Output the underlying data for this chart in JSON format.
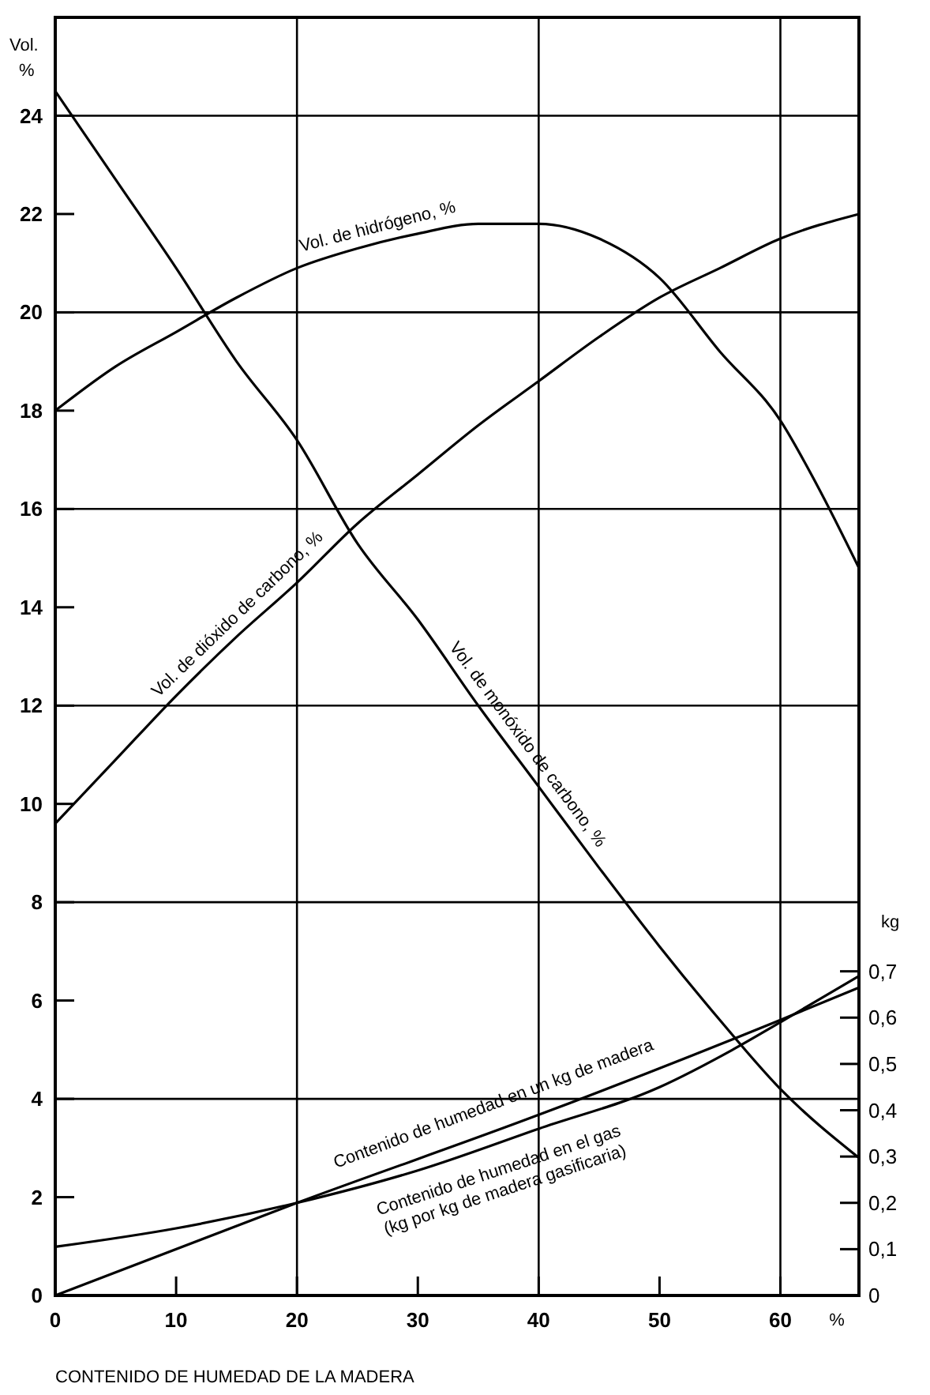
{
  "chart_data": {
    "type": "line",
    "xlabel": "CONTENIDO DE HUMEDAD DE LA MADERA",
    "ylabel": "Vol.\n%",
    "y2label": "kg",
    "annotations": [
      "%"
    ],
    "xlim": [
      0,
      66.5
    ],
    "xticks": [
      0,
      10,
      20,
      30,
      40,
      50,
      60
    ],
    "ylim": [
      0,
      26
    ],
    "yticks": [
      0,
      2,
      4,
      6,
      8,
      10,
      12,
      14,
      16,
      18,
      20,
      22,
      24
    ],
    "y2lim": [
      0,
      2.76
    ],
    "y2ticks": [
      0,
      {
        "value": 0.1,
        "label": "0,1"
      },
      {
        "value": 0.2,
        "label": "0,2"
      },
      {
        "value": 0.3,
        "label": "0,3"
      },
      {
        "value": 0.4,
        "label": "0,4"
      },
      {
        "value": 0.5,
        "label": "0,5"
      },
      {
        "value": 0.6,
        "label": "0,6"
      },
      {
        "value": 0.7,
        "label": "0,7"
      }
    ],
    "grid": true,
    "marker": "none",
    "line_style": "solid",
    "series": [
      {
        "name": "Vol. de hidrógeno, %",
        "color": "#000000",
        "x": [
          0,
          5,
          10,
          15,
          20,
          25,
          30,
          35,
          40,
          45,
          50,
          55,
          60,
          63,
          66.5
        ],
        "values": [
          18,
          18.9,
          19.6,
          20.3,
          20.9,
          21.3,
          21.6,
          21.8,
          21.8,
          21.5,
          20.7,
          19.2,
          17.8,
          16.5,
          14.8
        ]
      },
      {
        "name": "Vol. de dióxido de carbono, %",
        "color": "#000000",
        "x": [
          0,
          5,
          10,
          15,
          20,
          25,
          30,
          35,
          40,
          45,
          50,
          55,
          60,
          66.5
        ],
        "values": [
          9.6,
          10.9,
          12.2,
          13.4,
          14.5,
          15.7,
          16.7,
          17.7,
          18.6,
          19.5,
          20.3,
          20.9,
          21.5,
          22.0
        ]
      },
      {
        "name": "Vol. de monóxido de carbono, %",
        "color": "#000000",
        "x": [
          0,
          5,
          10,
          15,
          20,
          25,
          30,
          35,
          40,
          45,
          50,
          55,
          60,
          66.5
        ],
        "values": [
          24.5,
          22.7,
          20.9,
          19.0,
          17.4,
          15.3,
          13.75,
          12.0,
          10.35,
          8.7,
          7.1,
          5.6,
          4.2,
          2.8
        ]
      },
      {
        "name": "Contenido de humedad en un kg de madera",
        "color": "#000000",
        "axis": "y2",
        "x": [
          0,
          20,
          40,
          60,
          66.5
        ],
        "values": [
          0,
          0.2,
          0.39,
          0.595,
          0.665
        ]
      },
      {
        "name": "Contenido de humedad en el gas\n(kg por kg de madera gasificaria)",
        "color": "#000000",
        "axis": "y2",
        "x": [
          0,
          10,
          20,
          30,
          40,
          50,
          56,
          60,
          66.5
        ],
        "values": [
          0.105,
          0.145,
          0.2,
          0.27,
          0.36,
          0.45,
          0.53,
          0.59,
          0.69
        ]
      }
    ]
  }
}
